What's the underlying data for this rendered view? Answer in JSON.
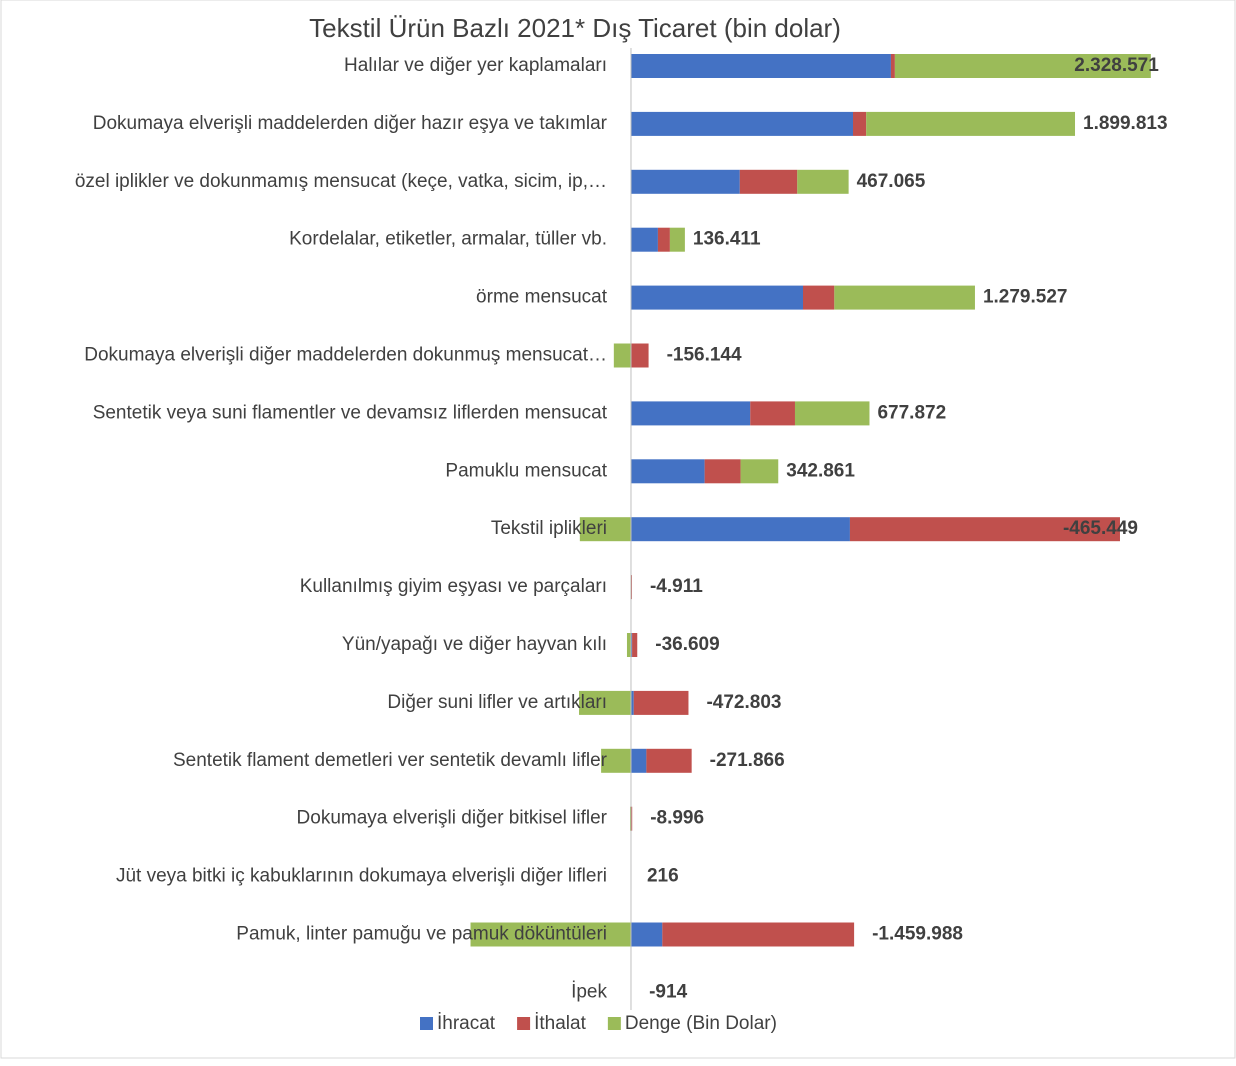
{
  "chart_data": {
    "type": "stacked_bar_horizontal",
    "title": "Tekstil Ürün Bazlı 2021* Dış Ticaret (bin dolar)",
    "categories": [
      "Halılar ve diğer yer kaplamaları",
      "Dokumaya elverişli maddelerden diğer hazır eşya ve takımlar",
      "özel iplikler ve dokunmamış mensucat (keçe, vatka, sicim, ip,…",
      "Kordelalar, etiketler, armalar, tüller vb.",
      "örme mensucat",
      "Dokumaya elverişli diğer maddelerden dokunmuş mensucat…",
      "Sentetik veya suni flamentler ve devamsız liflerden mensucat",
      "Pamuklu mensucat",
      "Tekstil iplikleri",
      "Kullanılmış giyim eşyası ve parçaları",
      "Yün/yapağı ve diğer hayvan kılı",
      "Diğer suni lifler ve artıkları",
      "Sentetik flament demetleri ver sentetik devamlı lifler",
      "Dokumaya elverişli diğer bitkisel lifler",
      "Jüt veya bitki iç kabuklarının dokumaya elverişli diğer lifleri",
      "Pamuk, linter pamuğu ve pamuk döküntüleri",
      "İpek"
    ],
    "series": [
      {
        "name": "İhracat",
        "color": "#4472c4",
        "values": [
          2365000,
          2020000,
          990000,
          245000,
          1565000,
          2000,
          1085000,
          670000,
          1992000,
          2000,
          10000,
          25000,
          140000,
          1000,
          1000,
          285000,
          100
        ]
      },
      {
        "name": "İthalat",
        "color": "#c0504d",
        "values": [
          36000,
          120000,
          523000,
          109000,
          285000,
          158000,
          407000,
          327000,
          2457000,
          7000,
          47000,
          498000,
          412000,
          10000,
          784,
          1745000,
          1014
        ]
      },
      {
        "name": "Denge (Bin Dolar)",
        "color": "#9bbb59",
        "values": [
          2328571,
          1899813,
          467065,
          136411,
          1279527,
          -156144,
          677872,
          342861,
          -465449,
          -4911,
          -36609,
          -472803,
          -271866,
          -8996,
          216,
          -1459988,
          -914
        ],
        "value_labels": [
          "2.328.571",
          "1.899.813",
          "467.065",
          "136.411",
          "1.279.527",
          "-156.144",
          "677.872",
          "342.861",
          "-465.449",
          "-4.911",
          "-36.609",
          "-472.803",
          "-271.866",
          "-8.996",
          "216",
          "-1.459.988",
          "-914"
        ]
      }
    ],
    "xlim": [
      -5650000,
      5450000
    ],
    "legend": "bottom"
  }
}
